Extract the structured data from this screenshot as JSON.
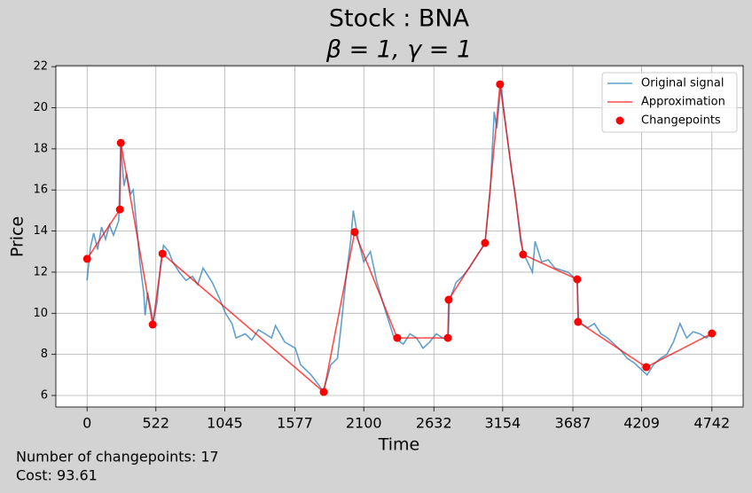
{
  "chart_data": {
    "type": "line",
    "title": "Stock : BNA",
    "subtitle": "β = 1, γ = 1",
    "x_label": "Time",
    "y_label": "Price",
    "xlim": [
      -237,
      4979
    ],
    "ylim": [
      5.44,
      22.05
    ],
    "xticks": [
      0,
      522,
      1045,
      1577,
      2100,
      2632,
      3154,
      3687,
      4209,
      4742
    ],
    "yticks": [
      6,
      8,
      10,
      12,
      14,
      16,
      18,
      20,
      22
    ],
    "grid": true,
    "legend": "upper right",
    "series": [
      {
        "name": "Original signal",
        "type": "line",
        "color": "#1f77b4",
        "x": [
          0,
          25,
          50,
          80,
          110,
          140,
          170,
          200,
          240,
          256,
          280,
          300,
          330,
          350,
          380,
          400,
          430,
          440,
          460,
          490,
          500,
          530,
          560,
          580,
          620,
          650,
          700,
          750,
          800,
          840,
          880,
          950,
          1000,
          1050,
          1100,
          1130,
          1200,
          1250,
          1300,
          1350,
          1400,
          1430,
          1500,
          1580,
          1620,
          1700,
          1760,
          1790,
          1820,
          1850,
          1900,
          1930,
          1970,
          2000,
          2020,
          2060,
          2100,
          2150,
          2200,
          2270,
          2330,
          2400,
          2450,
          2500,
          2550,
          2600,
          2650,
          2700,
          2740,
          2750,
          2800,
          2850,
          2900,
          2980,
          3020,
          3060,
          3090,
          3110,
          3140,
          3180,
          3220,
          3250,
          3290,
          3320,
          3380,
          3400,
          3450,
          3500,
          3550,
          3600,
          3650,
          3720,
          3730,
          3800,
          3850,
          3900,
          3950,
          4000,
          4050,
          4100,
          4150,
          4200,
          4250,
          4300,
          4350,
          4400,
          4450,
          4500,
          4550,
          4600,
          4650,
          4700,
          4742
        ],
        "values": [
          11.6,
          13.2,
          13.9,
          13.1,
          14.2,
          13.6,
          14.3,
          13.8,
          14.5,
          18.2,
          16.2,
          16.8,
          15.8,
          16.0,
          14.0,
          12.5,
          11.0,
          9.9,
          11.0,
          10.0,
          9.5,
          10.5,
          12.5,
          13.3,
          13.0,
          12.5,
          12.0,
          11.6,
          11.8,
          11.4,
          12.2,
          11.5,
          10.8,
          10.0,
          9.5,
          8.8,
          9.0,
          8.7,
          9.2,
          9.0,
          8.8,
          9.4,
          8.6,
          8.3,
          7.5,
          7.0,
          6.5,
          6.2,
          6.8,
          7.5,
          7.8,
          9.5,
          12.0,
          13.5,
          15.0,
          13.5,
          12.5,
          13.0,
          11.5,
          10.0,
          8.8,
          8.5,
          9.0,
          8.8,
          8.3,
          8.6,
          9.0,
          8.8,
          8.7,
          10.6,
          11.5,
          11.8,
          12.2,
          13.0,
          13.4,
          16.0,
          19.8,
          19.0,
          21.1,
          19.0,
          17.0,
          15.8,
          13.5,
          12.8,
          12.0,
          13.5,
          12.5,
          12.6,
          12.2,
          12.1,
          12.0,
          11.6,
          9.6,
          9.3,
          9.5,
          9.0,
          8.8,
          8.5,
          8.2,
          7.8,
          7.6,
          7.3,
          7.0,
          7.5,
          7.8,
          8.0,
          8.6,
          9.5,
          8.8,
          9.1,
          9.0,
          8.8,
          9.0
        ]
      },
      {
        "name": "Approximation",
        "type": "line",
        "color": "#ff0000",
        "x": [
          0,
          249,
          256,
          498,
          572,
          1796,
          2031,
          2354,
          2738,
          2744,
          3020,
          3134,
          3309,
          3720,
          3726,
          4244,
          4742
        ],
        "values": [
          12.65,
          15.05,
          18.29,
          9.45,
          12.9,
          6.17,
          13.95,
          8.8,
          8.8,
          10.66,
          13.42,
          21.14,
          12.86,
          11.65,
          9.58,
          7.38,
          9.02
        ]
      },
      {
        "name": "Changepoints",
        "type": "scatter",
        "color": "#ff0000",
        "x": [
          0,
          249,
          256,
          498,
          572,
          1796,
          2031,
          2354,
          2738,
          2744,
          3020,
          3134,
          3309,
          3720,
          3726,
          4244,
          4742
        ],
        "values": [
          12.65,
          15.05,
          18.29,
          9.45,
          12.9,
          6.17,
          13.95,
          8.8,
          8.8,
          10.66,
          13.42,
          21.14,
          12.86,
          11.65,
          9.58,
          7.38,
          9.02
        ]
      }
    ],
    "annotations": [
      "Number of changepoints: 17",
      "Cost: 93.61"
    ]
  }
}
